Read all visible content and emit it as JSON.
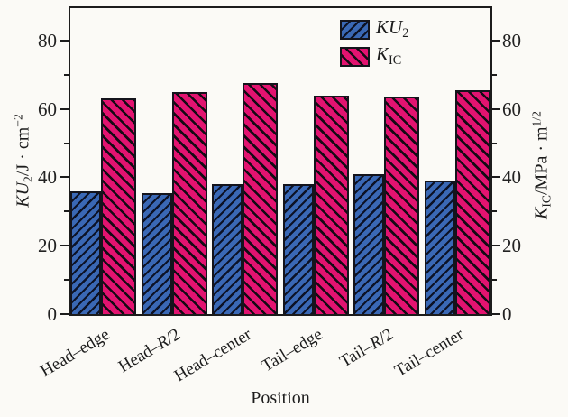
{
  "chart_data": {
    "type": "bar",
    "title": "",
    "xlabel": "Position",
    "ylabel_left": "KU2/J · cm^-2",
    "ylabel_left_segments": [
      {
        "t": "KU",
        "style": "i"
      },
      {
        "t": "2",
        "style": "sub"
      },
      {
        "t": "/J · cm"
      },
      {
        "t": "−2",
        "style": "sup"
      }
    ],
    "ylabel_right": "KIC/MPa · m^1/2",
    "ylabel_right_segments": [
      {
        "t": "K",
        "style": "i"
      },
      {
        "t": "IC",
        "style": "sub"
      },
      {
        "t": "/MPa · m"
      },
      {
        "t": "1/2",
        "style": "sup"
      }
    ],
    "categories": [
      "Head–edge",
      "Head–R/2",
      "Head–center",
      "Tail–edge",
      "Tail–R/2",
      "Tail–center"
    ],
    "categories_segments": [
      [
        {
          "t": "Head–edge"
        }
      ],
      [
        {
          "t": "Head–"
        },
        {
          "t": "R",
          "style": "i"
        },
        {
          "t": "/2"
        }
      ],
      [
        {
          "t": "Head–center"
        }
      ],
      [
        {
          "t": "Tail–edge"
        }
      ],
      [
        {
          "t": "Tail–"
        },
        {
          "t": "R",
          "style": "i"
        },
        {
          "t": "/2"
        }
      ],
      [
        {
          "t": "Tail–center"
        }
      ]
    ],
    "series": [
      {
        "name": "KU2",
        "axis": "left",
        "color": "#3a68b5",
        "hatch": "/",
        "values": [
          36,
          35.5,
          38,
          38,
          41,
          39
        ],
        "label_segments": [
          {
            "t": "KU",
            "style": "i"
          },
          {
            "t": "2",
            "style": "sub"
          }
        ]
      },
      {
        "name": "KIC",
        "axis": "right",
        "color": "#e21370",
        "hatch": "\\",
        "values": [
          63,
          65,
          67.5,
          64,
          63.5,
          65.5
        ],
        "label_segments": [
          {
            "t": "K",
            "style": "i"
          },
          {
            "t": "IC",
            "style": "sub"
          }
        ]
      }
    ],
    "yticks_major": [
      0,
      20,
      40,
      60,
      80
    ],
    "yticks_minor": [
      10,
      30,
      50,
      70
    ],
    "ylim": [
      0,
      89.5
    ],
    "grid": false,
    "legend_position": "upper-center-right",
    "colors": {
      "axis": "#1c1c1c",
      "background": "#fbfaf6",
      "bar_blue": "#3a68b5",
      "bar_pink": "#e21370"
    }
  }
}
